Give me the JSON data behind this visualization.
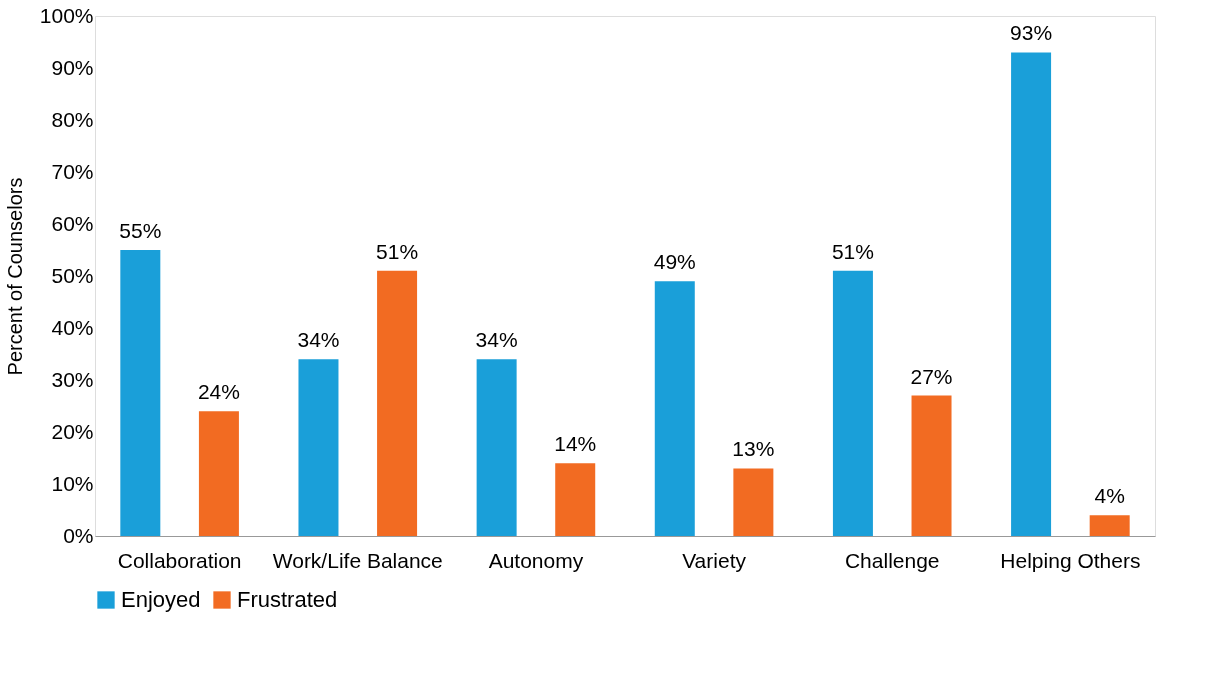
{
  "chart_data": {
    "type": "bar",
    "ylabel": "Percent of Counselors",
    "categories": [
      "Collaboration",
      "Work/Life Balance",
      "Autonomy",
      "Variety",
      "Challenge",
      "Helping Others"
    ],
    "series": [
      {
        "name": "Enjoyed",
        "color": "#1a9fd9",
        "values": [
          55,
          34,
          34,
          49,
          51,
          93
        ],
        "value_labels": [
          "55%",
          "34%",
          "34%",
          "49%",
          "51%",
          "93%"
        ]
      },
      {
        "name": "Frustrated",
        "color": "#f26b22",
        "values": [
          24,
          51,
          14,
          13,
          27,
          4
        ],
        "value_labels": [
          "24%",
          "51%",
          "14%",
          "13%",
          "27%",
          "4%"
        ]
      }
    ],
    "ylim": [
      0,
      100
    ],
    "yticks": [
      {
        "value": 0,
        "label": "0%"
      },
      {
        "value": 10,
        "label": "10%"
      },
      {
        "value": 20,
        "label": "20%"
      },
      {
        "value": 30,
        "label": "30%"
      },
      {
        "value": 40,
        "label": "40%"
      },
      {
        "value": 50,
        "label": "50%"
      },
      {
        "value": 60,
        "label": "60%"
      },
      {
        "value": 70,
        "label": "70%"
      },
      {
        "value": 80,
        "label": "80%"
      },
      {
        "value": 90,
        "label": "90%"
      },
      {
        "value": 100,
        "label": "100%"
      }
    ],
    "grid": false,
    "legend": "bottom"
  }
}
